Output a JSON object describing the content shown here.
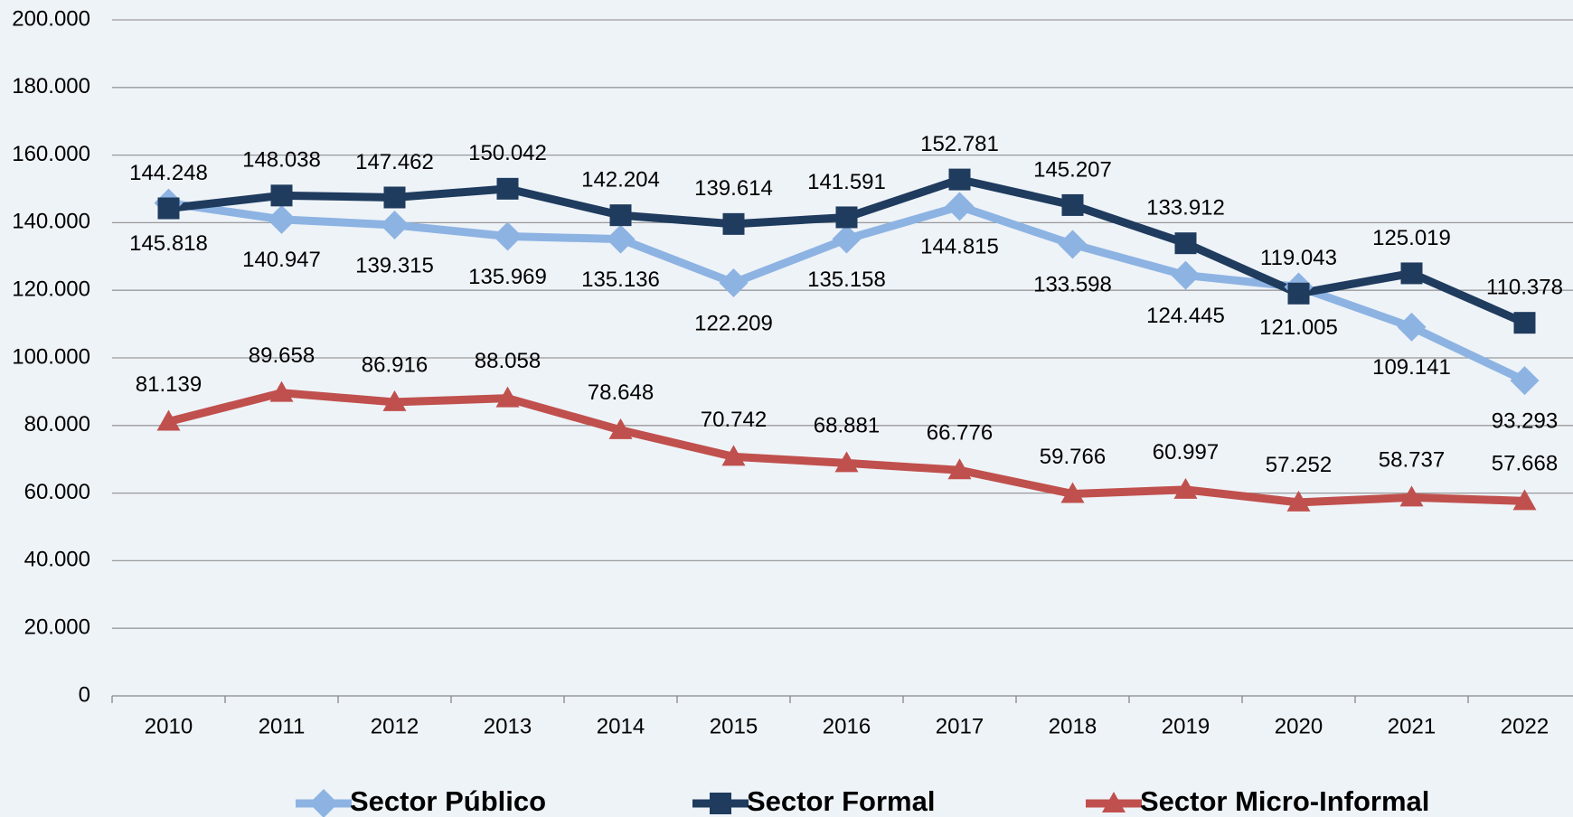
{
  "chart_data": {
    "type": "line",
    "categories": [
      "2010",
      "2011",
      "2012",
      "2013",
      "2014",
      "2015",
      "2016",
      "2017",
      "2018",
      "2019",
      "2020",
      "2021",
      "2022"
    ],
    "series": [
      {
        "name": "Sector Público",
        "color": "#8db3e2",
        "marker": "diamond",
        "values": [
          145818,
          140947,
          139315,
          135969,
          135136,
          122209,
          135158,
          144815,
          133598,
          124445,
          121005,
          109141,
          93293
        ],
        "value_labels": [
          "145.818",
          "140.947",
          "139.315",
          "135.969",
          "135.136",
          "122.209",
          "135.158",
          "144.815",
          "133.598",
          "124.445",
          "121.005",
          "109.141",
          "93.293"
        ]
      },
      {
        "name": "Sector Formal",
        "color": "#1f3b5e",
        "marker": "square",
        "values": [
          144248,
          148038,
          147462,
          150042,
          142204,
          139614,
          141591,
          152781,
          145207,
          133912,
          119043,
          125019,
          110378
        ],
        "value_labels": [
          "144.248",
          "148.038",
          "147.462",
          "150.042",
          "142.204",
          "139.614",
          "141.591",
          "152.781",
          "145.207",
          "133.912",
          "119.043",
          "125.019",
          "110.378"
        ]
      },
      {
        "name": "Sector Micro-Informal",
        "color": "#c0504d",
        "marker": "triangle",
        "values": [
          81139,
          89658,
          86916,
          88058,
          78648,
          70742,
          68881,
          66776,
          59766,
          60997,
          57252,
          58737,
          57668
        ],
        "value_labels": [
          "81.139",
          "89.658",
          "86.916",
          "88.058",
          "78.648",
          "70.742",
          "68.881",
          "66.776",
          "59.766",
          "60.997",
          "57.252",
          "58.737",
          "57.668"
        ]
      }
    ],
    "ylim": [
      0,
      200000
    ],
    "yticks": [
      0,
      {
        "value": 20000,
        "label": "20.000"
      },
      {
        "value": 40000,
        "label": "40.000"
      },
      {
        "value": 60000,
        "label": "60.000"
      },
      {
        "value": 80000,
        "label": "80.000"
      },
      {
        "value": 100000,
        "label": "100.000"
      },
      {
        "value": 120000,
        "label": "120.000"
      },
      {
        "value": 140000,
        "label": "140.000"
      },
      {
        "value": 160000,
        "label": "160.000"
      },
      {
        "value": 180000,
        "label": "180.000"
      },
      {
        "value": 200000,
        "label": "200.000"
      }
    ],
    "grid": true,
    "legend": "bottom"
  }
}
